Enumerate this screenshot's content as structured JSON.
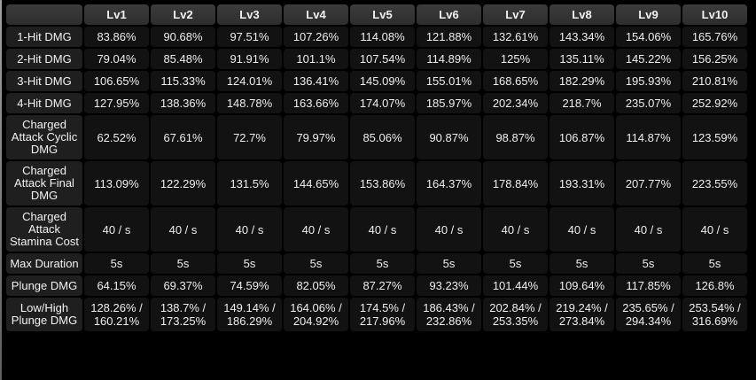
{
  "colors": {
    "background": "#000000",
    "header_cell_top": "#3b3b3b",
    "header_cell_bottom": "#2e2e2e",
    "label_cell": "#1f1f1f",
    "data_cell": "#121212",
    "text": "#efefef",
    "edge_line": "#8a8a8a"
  },
  "table": {
    "corner_label": "",
    "columns": [
      "Lv1",
      "Lv2",
      "Lv3",
      "Lv4",
      "Lv5",
      "Lv6",
      "Lv7",
      "Lv8",
      "Lv9",
      "Lv10"
    ],
    "rows": [
      {
        "label": "1-Hit DMG",
        "values": [
          "83.86%",
          "90.68%",
          "97.51%",
          "107.26%",
          "114.08%",
          "121.88%",
          "132.61%",
          "143.34%",
          "154.06%",
          "165.76%"
        ]
      },
      {
        "label": "2-Hit DMG",
        "values": [
          "79.04%",
          "85.48%",
          "91.91%",
          "101.1%",
          "107.54%",
          "114.89%",
          "125%",
          "135.11%",
          "145.22%",
          "156.25%"
        ]
      },
      {
        "label": "3-Hit DMG",
        "values": [
          "106.65%",
          "115.33%",
          "124.01%",
          "136.41%",
          "145.09%",
          "155.01%",
          "168.65%",
          "182.29%",
          "195.93%",
          "210.81%"
        ]
      },
      {
        "label": "4-Hit DMG",
        "values": [
          "127.95%",
          "138.36%",
          "148.78%",
          "163.66%",
          "174.07%",
          "185.97%",
          "202.34%",
          "218.7%",
          "235.07%",
          "252.92%"
        ]
      },
      {
        "label": "Charged Attack Cyclic DMG",
        "values": [
          "62.52%",
          "67.61%",
          "72.7%",
          "79.97%",
          "85.06%",
          "90.87%",
          "98.87%",
          "106.87%",
          "114.87%",
          "123.59%"
        ]
      },
      {
        "label": "Charged Attack Final DMG",
        "values": [
          "113.09%",
          "122.29%",
          "131.5%",
          "144.65%",
          "153.86%",
          "164.37%",
          "178.84%",
          "193.31%",
          "207.77%",
          "223.55%"
        ]
      },
      {
        "label": "Charged Attack Stamina Cost",
        "values": [
          "40 / s",
          "40 / s",
          "40 / s",
          "40 / s",
          "40 / s",
          "40 / s",
          "40 / s",
          "40 / s",
          "40 / s",
          "40 / s"
        ]
      },
      {
        "label": "Max Duration",
        "values": [
          "5s",
          "5s",
          "5s",
          "5s",
          "5s",
          "5s",
          "5s",
          "5s",
          "5s",
          "5s"
        ]
      },
      {
        "label": "Plunge DMG",
        "values": [
          "64.15%",
          "69.37%",
          "74.59%",
          "82.05%",
          "87.27%",
          "93.23%",
          "101.44%",
          "109.64%",
          "117.85%",
          "126.8%"
        ]
      },
      {
        "label": "Low/High Plunge DMG",
        "values": [
          "128.26% / 160.21%",
          "138.7% / 173.25%",
          "149.14% / 186.29%",
          "164.06% / 204.92%",
          "174.5% / 217.96%",
          "186.43% / 232.86%",
          "202.84% / 253.35%",
          "219.24% / 273.84%",
          "235.65% / 294.34%",
          "253.54% / 316.69%"
        ]
      }
    ]
  }
}
